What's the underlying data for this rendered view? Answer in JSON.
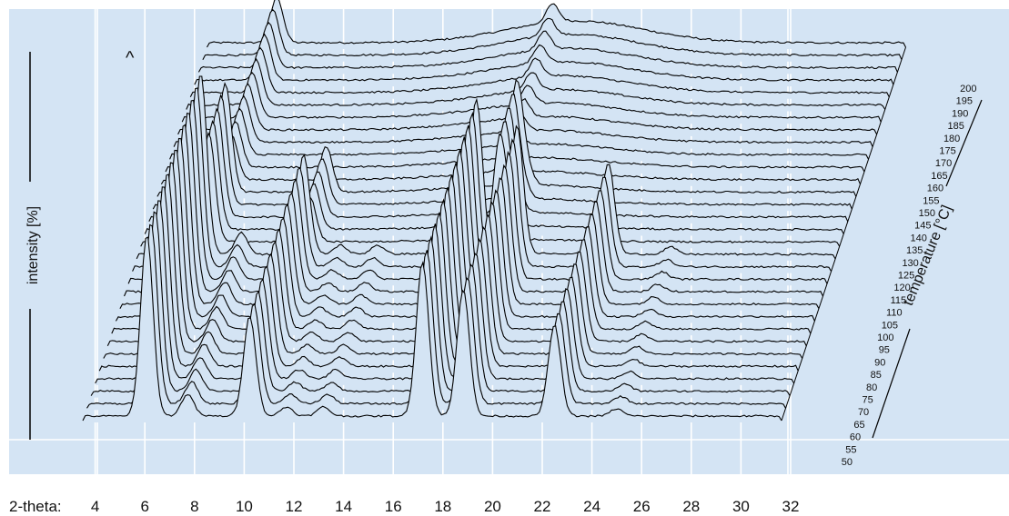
{
  "colors": {
    "panel": "#d4e4f4",
    "grid": "#ffffff",
    "trace": "#000000"
  },
  "chart_data": {
    "type": "line",
    "chart_subtype": "stacked waterfall",
    "xlabel_prefix": "2-theta:",
    "x_ticks": [
      4,
      6,
      8,
      10,
      12,
      14,
      16,
      18,
      20,
      22,
      24,
      26,
      28,
      30,
      32
    ],
    "xlim": [
      2,
      38
    ],
    "ylabel": "intensity [%]",
    "zlabel": "temperature [°C]",
    "caret_marker": "^",
    "temperatures": [
      50,
      55,
      60,
      65,
      70,
      75,
      80,
      85,
      90,
      95,
      100,
      105,
      110,
      115,
      120,
      125,
      130,
      135,
      140,
      145,
      150,
      155,
      160,
      165,
      170,
      175,
      180,
      185,
      190,
      195,
      200
    ],
    "grid": true,
    "series": [
      {
        "temperature_range": [
          50,
          115
        ],
        "peaks": [
          {
            "two_theta": 5.3,
            "height": 1.0
          },
          {
            "two_theta": 7.4,
            "height": 0.12
          },
          {
            "two_theta": 10.6,
            "height": 0.55
          },
          {
            "two_theta": 12.5,
            "height": 0.05
          },
          {
            "two_theta": 14.4,
            "height": 0.05
          },
          {
            "two_theta": 19.5,
            "height": 0.85
          },
          {
            "two_theta": 21.6,
            "height": 0.7
          },
          {
            "two_theta": 26.3,
            "height": 0.5
          },
          {
            "two_theta": 29.5,
            "height": 0.04
          }
        ]
      },
      {
        "temperature_range": [
          120,
          140
        ],
        "peaks": [
          {
            "two_theta": 5.5,
            "height": 0.6
          },
          {
            "two_theta": 10.7,
            "height": 0.25
          },
          {
            "two_theta": 20.5,
            "height": 0.55
          },
          {
            "two_theta": 21.0,
            "height": 0.1
          }
        ]
      },
      {
        "temperature_range": [
          145,
          200
        ],
        "peaks": [
          {
            "two_theta": 5.6,
            "height": 0.25
          },
          {
            "two_theta": 19.8,
            "height": 0.1
          }
        ]
      }
    ]
  }
}
